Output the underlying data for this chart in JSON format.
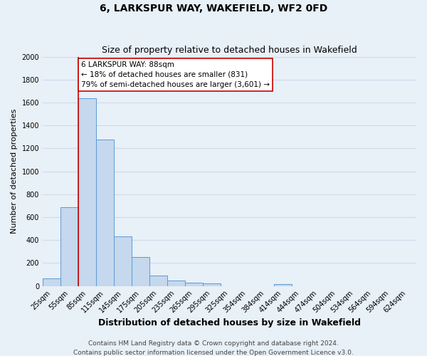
{
  "title": "6, LARKSPUR WAY, WAKEFIELD, WF2 0FD",
  "subtitle": "Size of property relative to detached houses in Wakefield",
  "xlabel": "Distribution of detached houses by size in Wakefield",
  "ylabel": "Number of detached properties",
  "bar_labels": [
    "25sqm",
    "55sqm",
    "85sqm",
    "115sqm",
    "145sqm",
    "175sqm",
    "205sqm",
    "235sqm",
    "265sqm",
    "295sqm",
    "325sqm",
    "354sqm",
    "384sqm",
    "414sqm",
    "444sqm",
    "474sqm",
    "504sqm",
    "534sqm",
    "564sqm",
    "594sqm",
    "624sqm"
  ],
  "bar_values": [
    65,
    690,
    1640,
    1280,
    435,
    250,
    90,
    50,
    30,
    20,
    0,
    0,
    0,
    15,
    0,
    0,
    0,
    0,
    0,
    0,
    0
  ],
  "bar_color": "#c5d8ed",
  "bar_edgecolor": "#5b9bd5",
  "ylim": [
    0,
    2000
  ],
  "yticks": [
    0,
    200,
    400,
    600,
    800,
    1000,
    1200,
    1400,
    1600,
    1800,
    2000
  ],
  "vline_x": 1.5,
  "vline_color": "#cc0000",
  "annotation_line1": "6 LARKSPUR WAY: 88sqm",
  "annotation_line2": "← 18% of detached houses are smaller (831)",
  "annotation_line3": "79% of semi-detached houses are larger (3,601) →",
  "annotation_box_color": "#ffffff",
  "annotation_box_edgecolor": "#cc0000",
  "footer1": "Contains HM Land Registry data © Crown copyright and database right 2024.",
  "footer2": "Contains public sector information licensed under the Open Government Licence v3.0.",
  "background_color": "#e8f0f8",
  "plot_bg_color": "#e8f0f8",
  "grid_color": "#d0dae8",
  "title_fontsize": 10,
  "subtitle_fontsize": 9,
  "xlabel_fontsize": 9,
  "ylabel_fontsize": 8,
  "tick_fontsize": 7,
  "footer_fontsize": 6.5,
  "annot_fontsize": 7.5
}
